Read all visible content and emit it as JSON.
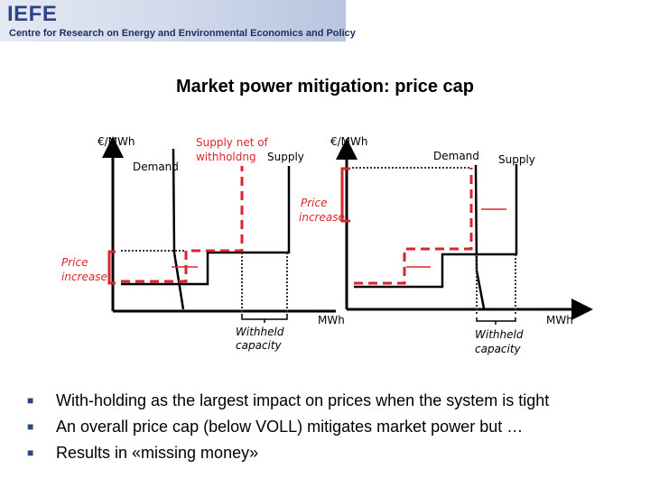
{
  "header": {
    "logo": "IEFE",
    "subtitle": "Centre for Research on Energy and Environmental Economics and Policy"
  },
  "title": "Market power mitigation: price cap",
  "left_diagram": {
    "y_axis_label": "€/MWh",
    "demand_label": "Demand",
    "supply_net_label_line1": "Supply net of",
    "supply_net_label_line2": "withholdng",
    "supply_label": "Supply",
    "price_increase_line1": "Price",
    "price_increase_line2": "increase",
    "withheld_line1": "Withheld",
    "withheld_line2": "capacity"
  },
  "right_diagram": {
    "y_axis_label": "€/MWh",
    "x_axis_label": "MWh",
    "demand_label": "Demand",
    "supply_label": "Supply",
    "price_increase_line1": "Price",
    "price_increase_line2": "increase",
    "withheld_line1": "Withheld",
    "withheld_line2": "capacity"
  },
  "center_x_axis_label": "MWh",
  "colors": {
    "accent_red": "#d9262c",
    "brand_blue": "#2d4585"
  },
  "bullets": [
    "With-holding as the largest impact on prices when the system is tight",
    "An overall price cap (below VOLL) mitigates market power but …",
    "Results in «missing money»"
  ]
}
